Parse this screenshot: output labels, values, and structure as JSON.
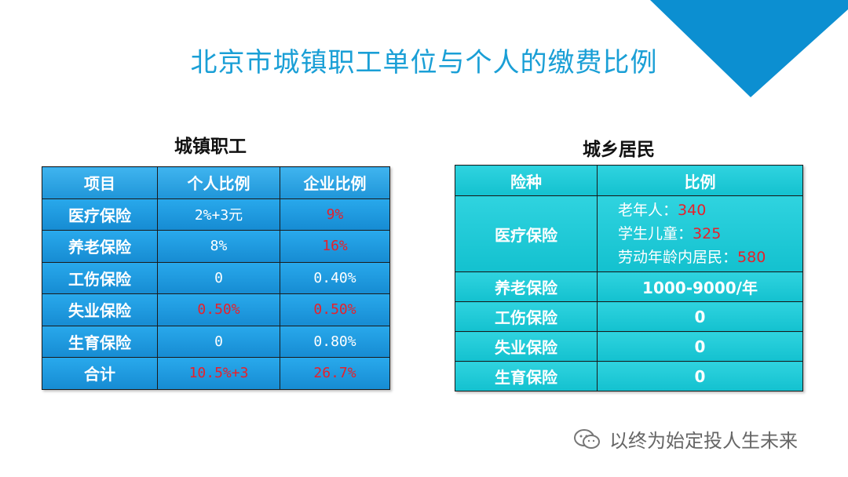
{
  "title": "北京市城镇职工单位与个人的缴费比例",
  "left": {
    "subtitle": "城镇职工",
    "headers": [
      "项目",
      "个人比例",
      "企业比例"
    ],
    "rows": [
      {
        "item": "医疗保险",
        "personal": "2%+3元",
        "company": "9%"
      },
      {
        "item": "养老保险",
        "personal": "8%",
        "company": "16%"
      },
      {
        "item": "工伤保险",
        "personal": "0",
        "company": "0.40%"
      },
      {
        "item": "失业保险",
        "personal": "0.50%",
        "company": "0.50%"
      },
      {
        "item": "生育保险",
        "personal": "0",
        "company": "0.80%"
      },
      {
        "item": "合计",
        "personal": "10.5%+3",
        "company": "26.7%"
      }
    ]
  },
  "right": {
    "subtitle": "城乡居民",
    "headers": [
      "险种",
      "比例"
    ],
    "medical": {
      "label": "医疗保险",
      "lines": [
        {
          "name": "老年人：",
          "value": "340"
        },
        {
          "name": "学生儿童：",
          "value": "325"
        },
        {
          "name": "劳动年龄内居民：",
          "value": "580"
        }
      ]
    },
    "rows": [
      {
        "item": "养老保险",
        "ratio": "1000-9000/年"
      },
      {
        "item": "工伤保险",
        "ratio": "0"
      },
      {
        "item": "失业保险",
        "ratio": "0"
      },
      {
        "item": "生育保险",
        "ratio": "0"
      }
    ]
  },
  "watermark": "以终为始定投人生未来",
  "colors": {
    "accent": "#1a9fd6",
    "red": "#e8202a",
    "cyan": "#1ac8d6",
    "blue": "#1f95d8"
  }
}
